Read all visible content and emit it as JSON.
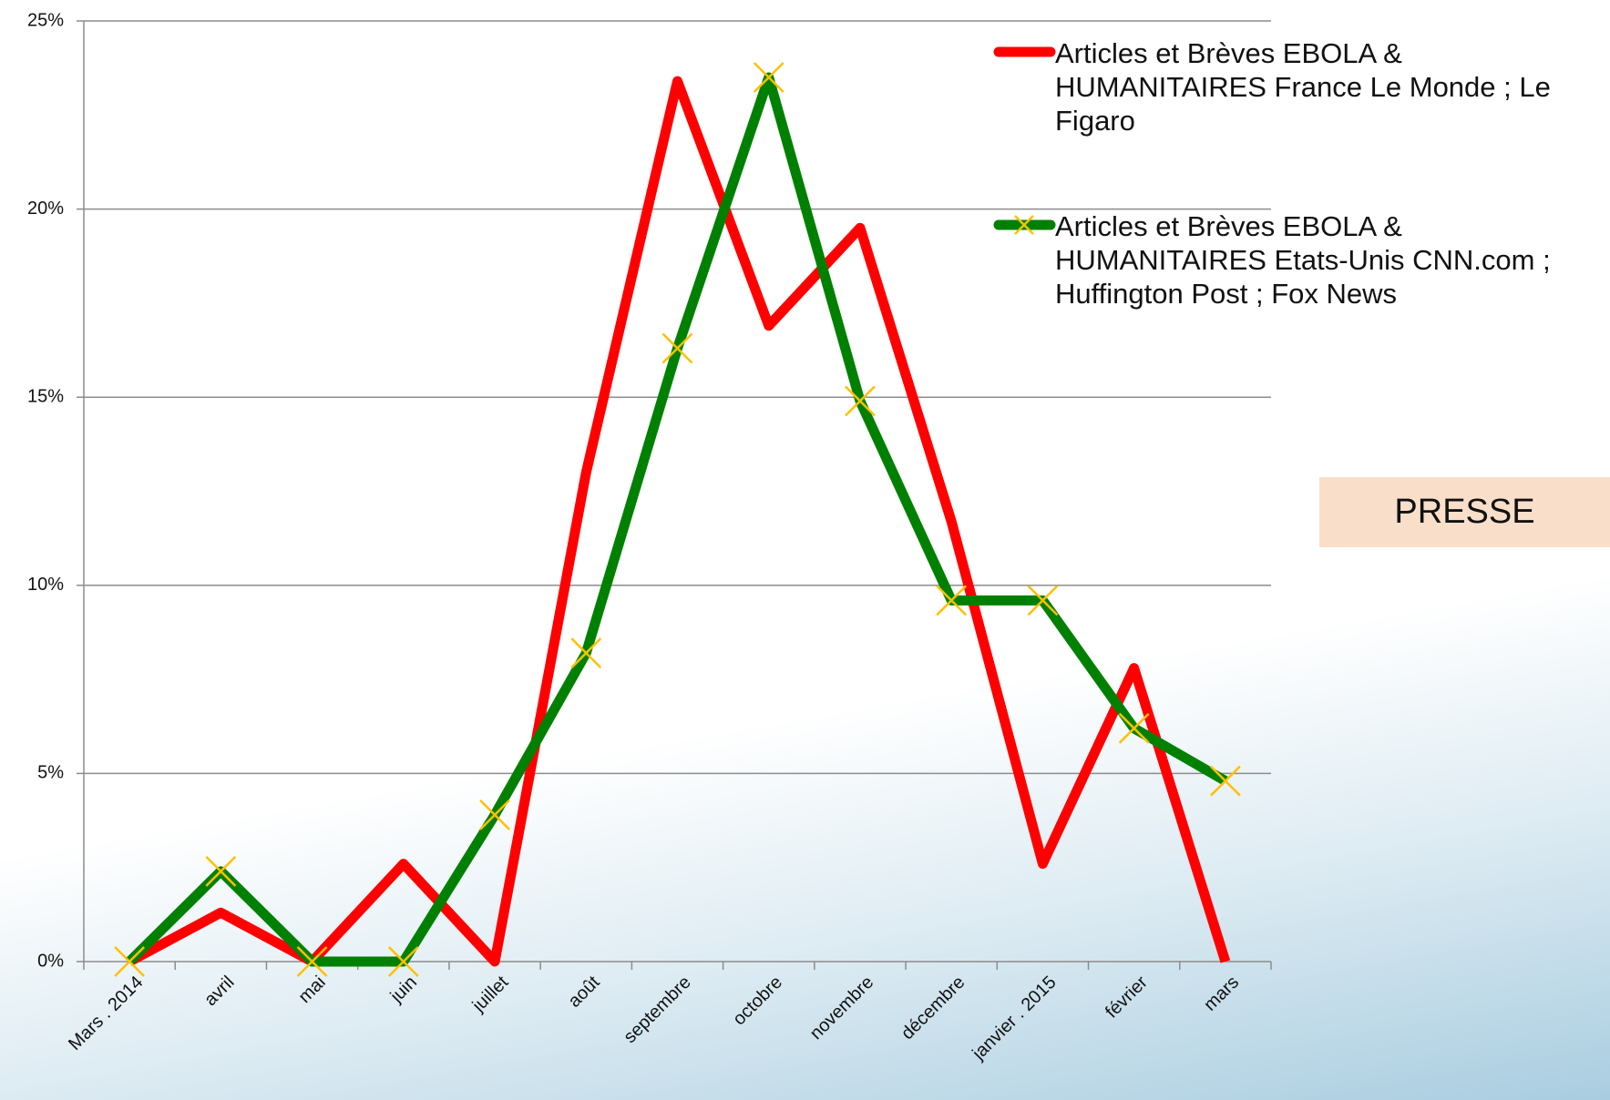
{
  "chart_data": {
    "type": "line",
    "categories": [
      "Mars . 2014",
      "avril",
      "mai",
      "juin",
      "juillet",
      "août",
      "septembre",
      "octobre",
      "novembre",
      "décembre",
      "janvier . 2015",
      "février",
      "mars"
    ],
    "series": [
      {
        "name": "Articles et Brèves   EBOLA  & HUMANITAIRES France Le Monde ; Le Figaro",
        "color": "#ff0000",
        "values": [
          0,
          1.3,
          0,
          2.6,
          0,
          13,
          23.4,
          16.9,
          19.5,
          11.7,
          2.6,
          7.8,
          0
        ]
      },
      {
        "name": "Articles et Brèves   EBOLA  & HUMANITAIRES Etats-Unis CNN.com ; Huffington Post ; Fox News",
        "color": "#008000",
        "marker_color": "#ffc000",
        "values": [
          0,
          2.4,
          0,
          0,
          3.9,
          8.2,
          16.3,
          23.5,
          14.9,
          9.6,
          9.6,
          6.2,
          4.8
        ]
      }
    ],
    "ylim": [
      0,
      25
    ],
    "yticks": [
      {
        "value": 0,
        "label": "0%"
      },
      {
        "value": 5,
        "label": "5%"
      },
      {
        "value": 10,
        "label": "10%"
      },
      {
        "value": 15,
        "label": "15%"
      },
      {
        "value": 20,
        "label": "20%"
      },
      {
        "value": 25,
        "label": "25%"
      }
    ],
    "grid": true,
    "annotation": "PRESSE"
  }
}
